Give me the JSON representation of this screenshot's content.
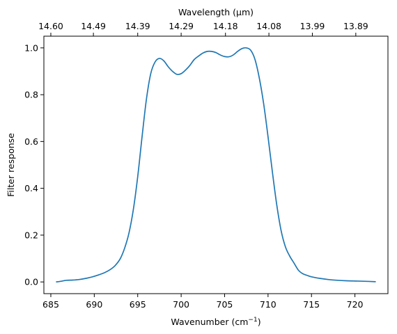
{
  "chart_data": {
    "type": "line",
    "xlabel": "Wavenumber (cm",
    "xlabel_sup": "−1",
    "xlabel_close": ")",
    "ylabel": "Filter response",
    "top_xlabel": "Wavelength (μm)",
    "xlim": [
      684.2,
      723.8
    ],
    "ylim": [
      -0.05,
      1.05
    ],
    "x_ticks": [
      685,
      690,
      695,
      700,
      705,
      710,
      715,
      720
    ],
    "y_ticks": [
      0.0,
      0.2,
      0.4,
      0.6,
      0.8,
      1.0
    ],
    "y_tick_labels": [
      "0.0",
      "0.2",
      "0.4",
      "0.6",
      "0.8",
      "1.0"
    ],
    "top_ticks": [
      {
        "at": 685.0,
        "label": "14.60"
      },
      {
        "at": 689.9,
        "label": "14.49"
      },
      {
        "at": 695.0,
        "label": "14.39"
      },
      {
        "at": 700.0,
        "label": "14.29"
      },
      {
        "at": 705.1,
        "label": "14.18"
      },
      {
        "at": 710.1,
        "label": "14.08"
      },
      {
        "at": 715.1,
        "label": "13.99"
      },
      {
        "at": 720.1,
        "label": "13.89"
      }
    ],
    "series": [
      {
        "color": "#1f77b4",
        "x": [
          685.6,
          686.2,
          686.8,
          687.5,
          688.2,
          689.0,
          689.8,
          690.5,
          691.2,
          691.8,
          692.4,
          693.0,
          693.5,
          694.0,
          694.5,
          695.0,
          695.5,
          696.0,
          696.5,
          697.0,
          697.5,
          698.0,
          698.5,
          699.0,
          699.5,
          700.0,
          700.5,
          701.0,
          701.5,
          702.0,
          702.5,
          703.0,
          703.5,
          704.0,
          704.5,
          705.0,
          705.5,
          706.0,
          706.5,
          707.0,
          707.5,
          708.0,
          708.5,
          709.0,
          709.5,
          710.0,
          710.5,
          711.0,
          711.5,
          712.0,
          712.5,
          713.0,
          713.5,
          714.0,
          714.5,
          715.0,
          716.0,
          717.0,
          718.0,
          719.0,
          720.0,
          721.0,
          722.4
        ],
        "y": [
          0.0,
          0.003,
          0.007,
          0.008,
          0.01,
          0.015,
          0.022,
          0.03,
          0.04,
          0.052,
          0.07,
          0.1,
          0.145,
          0.21,
          0.31,
          0.45,
          0.62,
          0.78,
          0.89,
          0.94,
          0.955,
          0.945,
          0.92,
          0.9,
          0.887,
          0.89,
          0.905,
          0.925,
          0.95,
          0.965,
          0.978,
          0.985,
          0.985,
          0.98,
          0.97,
          0.963,
          0.962,
          0.97,
          0.985,
          0.997,
          1.0,
          0.99,
          0.95,
          0.87,
          0.76,
          0.62,
          0.47,
          0.33,
          0.22,
          0.15,
          0.11,
          0.08,
          0.05,
          0.035,
          0.028,
          0.022,
          0.015,
          0.01,
          0.007,
          0.005,
          0.004,
          0.003,
          0.001
        ]
      }
    ],
    "grid": false,
    "legend": "none"
  }
}
